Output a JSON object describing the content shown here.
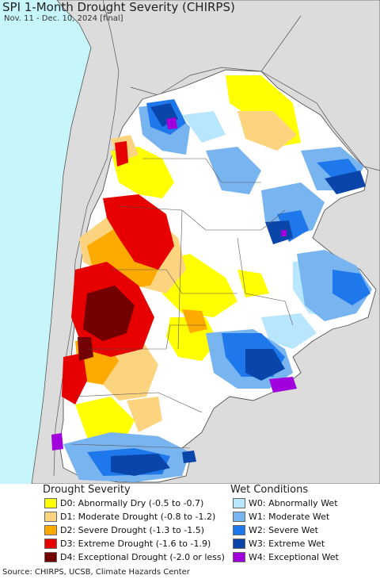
{
  "map": {
    "title": "SPI 1-Month Drought Severity (CHIRPS)",
    "subtitle": "Nov. 11 - Dec. 10, 2024 [final]",
    "colors": {
      "ocean": "#c7f6fa",
      "neighbor_land": "#dcdcdc",
      "region_land": "#ffffff",
      "border": "#555555"
    }
  },
  "legend": {
    "drought": {
      "heading": "Drought Severity",
      "items": [
        {
          "label": "D0: Abnormally Dry (-0.5 to -0.7)",
          "color": "#ffff00"
        },
        {
          "label": "D1: Moderate Drought (-0.8 to -1.2)",
          "color": "#fcd37f"
        },
        {
          "label": "D2: Severe Drought (-1.3 to -1.5)",
          "color": "#ffaa00"
        },
        {
          "label": "D3: Extreme Drought (-1.6 to -1.9)",
          "color": "#e60000"
        },
        {
          "label": "D4: Exceptional Drought (-2.0 or less)",
          "color": "#730000"
        }
      ]
    },
    "wet": {
      "heading": "Wet Conditions",
      "items": [
        {
          "label": "W0: Abnormally Wet",
          "color": "#b8e6ff"
        },
        {
          "label": "W1: Moderate Wet",
          "color": "#78b4f0"
        },
        {
          "label": "W2: Severe Wet",
          "color": "#1e78eb"
        },
        {
          "label": "W3: Extreme Wet",
          "color": "#0a46aa"
        },
        {
          "label": "W4: Exceptional Wet",
          "color": "#a000dc"
        }
      ]
    }
  },
  "footer": {
    "source": "Source: CHIRPS, UCSB, Climate Hazards Center"
  }
}
